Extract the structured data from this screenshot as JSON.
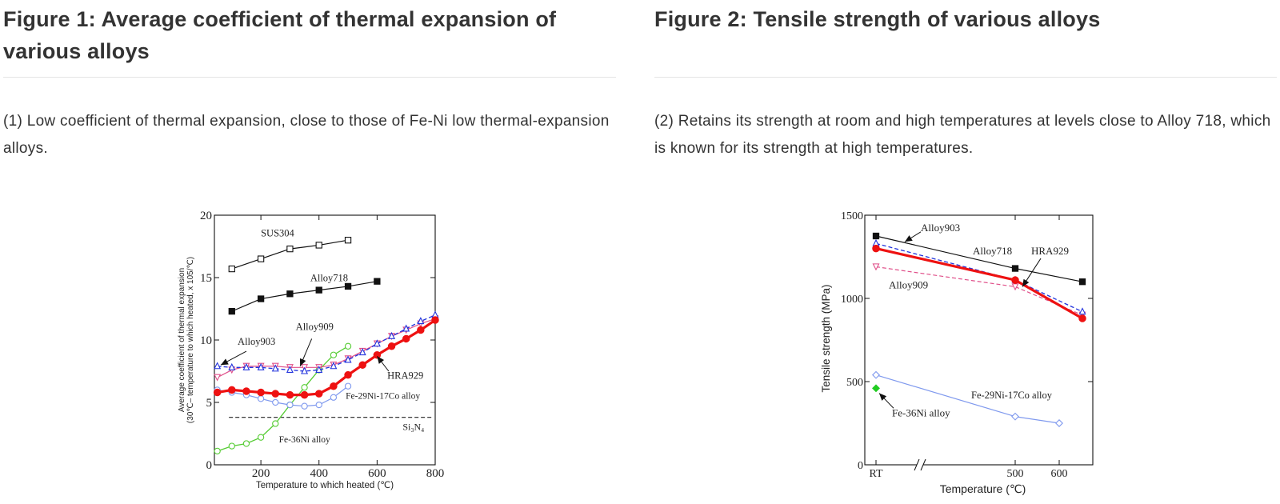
{
  "figure1": {
    "title": "Figure 1: Average coefficient of thermal expansion of various alloys",
    "description": "(1) Low coefficient of thermal expansion, close to those of Fe-Ni low thermal-expansion alloys."
  },
  "figure2": {
    "title": "Figure 2: Tensile strength of various alloys",
    "description": "(2) Retains its strength at room and high temperatures at levels close to Alloy 718, which is known for its strength at high temperatures."
  },
  "chart_data": [
    {
      "type": "line",
      "xlabel": "Temperature to which heated (℃)",
      "ylabel_line1": "Average coefficient of thermal expansion",
      "ylabel_line2": "(30℃– temperature to which heated, x 105/℃)",
      "xlim": [
        40,
        800
      ],
      "ylim": [
        0,
        20
      ],
      "xticks": [
        200,
        400,
        600,
        800
      ],
      "yticks": [
        0,
        5,
        10,
        15,
        20
      ],
      "grid": false,
      "reference_lines": [
        {
          "name": "Si3N4",
          "label": "Si₃N₄",
          "y": 3.8,
          "x_range": [
            90,
            800
          ],
          "dash": true
        }
      ],
      "series": [
        {
          "name": "SUS304",
          "color": "#111111",
          "marker": "open-square",
          "width": 1.2,
          "x": [
            100,
            200,
            300,
            400,
            500
          ],
          "y": [
            15.7,
            16.5,
            17.3,
            17.6,
            18.0
          ]
        },
        {
          "name": "Alloy718",
          "color": "#111111",
          "marker": "filled-square",
          "width": 1.2,
          "x": [
            100,
            200,
            300,
            400,
            500,
            600
          ],
          "y": [
            12.3,
            13.3,
            13.7,
            14.0,
            14.3,
            14.7
          ]
        },
        {
          "name": "Alloy903",
          "color": "#2233dd",
          "marker": "open-triangle",
          "width": 1.3,
          "dash": true,
          "x": [
            50,
            100,
            150,
            200,
            250,
            300,
            350,
            400,
            450,
            500,
            550,
            600,
            650,
            700,
            750,
            800
          ],
          "y": [
            7.9,
            7.8,
            7.8,
            7.8,
            7.7,
            7.6,
            7.5,
            7.6,
            7.9,
            8.4,
            9.0,
            9.7,
            10.3,
            10.9,
            11.5,
            12.0
          ]
        },
        {
          "name": "Alloy909",
          "color": "#e0508a",
          "marker": "open-triangle-down",
          "width": 1.2,
          "x": [
            50,
            100,
            150,
            200,
            250,
            300,
            350,
            400,
            450,
            500,
            550,
            600,
            650,
            700,
            750,
            800
          ],
          "y": [
            7.0,
            7.6,
            7.9,
            7.9,
            7.9,
            7.8,
            7.8,
            7.8,
            8.0,
            8.5,
            9.1,
            9.7,
            10.3,
            10.8,
            11.3,
            11.7
          ]
        },
        {
          "name": "HRA929",
          "color": "#ee1111",
          "marker": "filled-circle",
          "width": 3.2,
          "x": [
            50,
            100,
            150,
            200,
            250,
            300,
            350,
            400,
            450,
            500,
            550,
            600,
            650,
            700,
            750,
            800
          ],
          "y": [
            5.8,
            6.0,
            5.9,
            5.8,
            5.7,
            5.6,
            5.6,
            5.7,
            6.3,
            7.2,
            8.0,
            8.8,
            9.5,
            10.1,
            10.8,
            11.6
          ]
        },
        {
          "name": "Fe-29Ni-17Co alloy",
          "color": "#7f99ee",
          "marker": "open-circle",
          "width": 1.2,
          "x": [
            50,
            100,
            150,
            200,
            250,
            300,
            350,
            400,
            450,
            500
          ],
          "y": [
            6.0,
            5.8,
            5.6,
            5.3,
            5.0,
            4.8,
            4.7,
            4.8,
            5.4,
            6.3
          ]
        },
        {
          "name": "Fe-36Ni alloy",
          "color": "#55cc33",
          "marker": "open-circle",
          "width": 1.3,
          "x": [
            50,
            100,
            150,
            200,
            250,
            300,
            350,
            400,
            450,
            500
          ],
          "y": [
            1.1,
            1.5,
            1.7,
            2.2,
            3.3,
            4.8,
            6.2,
            7.6,
            8.8,
            9.5
          ]
        }
      ],
      "annotations": [
        {
          "text": "SUS304",
          "series": "SUS304"
        },
        {
          "text": "Alloy718",
          "series": "Alloy718"
        },
        {
          "text": "Alloy903",
          "series": "Alloy903"
        },
        {
          "text": "Alloy909",
          "series": "Alloy909"
        },
        {
          "text": "HRA929",
          "series": "HRA929"
        },
        {
          "text": "Fe-29Ni-17Co alloy",
          "series": "Fe-29Ni-17Co alloy"
        },
        {
          "text": "Fe-36Ni alloy",
          "series": "Fe-36Ni alloy"
        },
        {
          "text": "Si₃N₄",
          "series": "Si3N4"
        }
      ]
    },
    {
      "type": "line",
      "xlabel": "Temperature (℃)",
      "ylabel": "Tensile strength (MPa)",
      "ylim": [
        0,
        1500
      ],
      "yticks": [
        0,
        500,
        1000,
        1500
      ],
      "xtick_labels": [
        "RT",
        "500",
        "600"
      ],
      "x_categories": [
        "RT",
        "500",
        "600",
        "650"
      ],
      "axis_break": true,
      "grid": false,
      "series": [
        {
          "name": "Alloy718",
          "color": "#111111",
          "marker": "filled-square",
          "width": 1.2,
          "x": [
            "RT",
            "500",
            "650"
          ],
          "y": [
            1375,
            1180,
            1100
          ]
        },
        {
          "name": "Alloy903",
          "color": "#2233dd",
          "marker": "open-triangle",
          "width": 1.3,
          "dash": true,
          "x": [
            "RT",
            "500",
            "650"
          ],
          "y": [
            1330,
            1110,
            920
          ]
        },
        {
          "name": "HRA929",
          "color": "#ee1111",
          "marker": "filled-circle",
          "width": 3.2,
          "x": [
            "RT",
            "500",
            "650"
          ],
          "y": [
            1300,
            1110,
            880
          ]
        },
        {
          "name": "Alloy909",
          "color": "#e0508a",
          "marker": "open-triangle-down",
          "width": 1.2,
          "dash": true,
          "x": [
            "RT",
            "500",
            "650"
          ],
          "y": [
            1190,
            1070,
            900
          ]
        },
        {
          "name": "Fe-29Ni-17Co alloy",
          "color": "#7f99ee",
          "marker": "open-diamond",
          "width": 1.2,
          "x": [
            "RT",
            "500",
            "600"
          ],
          "y": [
            540,
            290,
            250
          ]
        },
        {
          "name": "Fe-36Ni alloy",
          "color": "#22cc22",
          "marker": "filled-diamond",
          "width": 1.2,
          "x": [
            "RT"
          ],
          "y": [
            460
          ]
        }
      ],
      "annotations": [
        {
          "text": "Alloy903",
          "series": "Alloy903"
        },
        {
          "text": "Alloy718",
          "series": "Alloy718"
        },
        {
          "text": "HRA929",
          "series": "HRA929"
        },
        {
          "text": "Alloy909",
          "series": "Alloy909"
        },
        {
          "text": "Fe-29Ni-17Co alloy",
          "series": "Fe-29Ni-17Co alloy"
        },
        {
          "text": "Fe-36Ni alloy",
          "series": "Fe-36Ni alloy"
        }
      ]
    }
  ]
}
